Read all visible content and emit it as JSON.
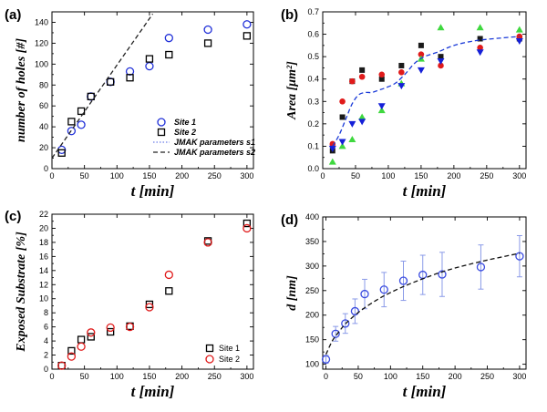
{
  "chart_data": [
    {
      "panel": "(a)",
      "type": "scatter",
      "xlabel": "t [min]",
      "ylabel": "number of holes [#]",
      "xlim": [
        0,
        310
      ],
      "ylim": [
        0,
        150
      ],
      "xticks": [
        0,
        50,
        100,
        150,
        200,
        250,
        300
      ],
      "yticks": [
        0,
        20,
        40,
        60,
        80,
        100,
        120,
        140
      ],
      "legend_position": "bottom-right",
      "series": [
        {
          "name": "Site 1",
          "marker": "circle-open",
          "color": "#1f2fd8",
          "x": [
            15,
            30,
            45,
            60,
            90,
            120,
            150,
            180,
            240,
            300
          ],
          "y": [
            18,
            36,
            42,
            69,
            83,
            93,
            98,
            125,
            133,
            138
          ]
        },
        {
          "name": "Site 2",
          "marker": "square-open",
          "color": "#000000",
          "x": [
            15,
            30,
            45,
            60,
            90,
            120,
            150,
            180,
            240,
            300
          ],
          "y": [
            15,
            45,
            55,
            69,
            83,
            87,
            105,
            109,
            120,
            127
          ]
        },
        {
          "name": "JMAK parameters s1",
          "line": "dotted",
          "color": "#6b7ee8",
          "x": [],
          "y": []
        },
        {
          "name": "JMAK parameters s2",
          "line": "dashed",
          "color": "#222222",
          "x": [
            0,
            155
          ],
          "y": [
            10,
            148
          ]
        }
      ]
    },
    {
      "panel": "(b)",
      "type": "scatter",
      "xlabel": "t [min]",
      "ylabel": "Area [μm²]",
      "xlim": [
        0,
        310
      ],
      "ylim": [
        0,
        0.7
      ],
      "xticks": [
        0,
        50,
        100,
        150,
        200,
        250,
        300
      ],
      "yticks": [
        0.0,
        0.1,
        0.2,
        0.3,
        0.4,
        0.5,
        0.6,
        0.7
      ],
      "series": [
        {
          "marker": "square",
          "color": "#1a1a1a",
          "x": [
            15,
            30,
            45,
            60,
            90,
            120,
            150,
            180,
            240,
            300
          ],
          "y": [
            0.08,
            0.23,
            0.39,
            0.44,
            0.4,
            0.46,
            0.55,
            0.5,
            0.58,
            0.58
          ]
        },
        {
          "marker": "circle",
          "color": "#e01b1b",
          "x": [
            15,
            30,
            45,
            60,
            90,
            120,
            150,
            180,
            240,
            300
          ],
          "y": [
            0.11,
            0.3,
            0.39,
            0.41,
            0.42,
            0.43,
            0.51,
            0.46,
            0.54,
            0.59
          ]
        },
        {
          "marker": "triangle-up",
          "color": "#3fd83f",
          "x": [
            15,
            30,
            45,
            60,
            90,
            120,
            150,
            180,
            240,
            300
          ],
          "y": [
            0.03,
            0.1,
            0.13,
            0.23,
            0.26,
            0.38,
            0.49,
            0.63,
            0.63,
            0.62
          ]
        },
        {
          "marker": "triangle-down",
          "color": "#1520d8",
          "x": [
            15,
            30,
            45,
            60,
            90,
            120,
            150,
            180,
            240,
            300
          ],
          "y": [
            0.09,
            0.12,
            0.2,
            0.21,
            0.28,
            0.37,
            0.44,
            0.48,
            0.52,
            0.57
          ]
        },
        {
          "line": "dashed-fit",
          "color": "#1a3ad8",
          "x": [
            15,
            25,
            35,
            45,
            55,
            65,
            75,
            85,
            95,
            110,
            125,
            140,
            155,
            175,
            200,
            230,
            260,
            300
          ],
          "y": [
            0.1,
            0.15,
            0.22,
            0.29,
            0.33,
            0.34,
            0.34,
            0.35,
            0.36,
            0.38,
            0.42,
            0.47,
            0.5,
            0.52,
            0.55,
            0.57,
            0.58,
            0.59
          ]
        }
      ]
    },
    {
      "panel": "(c)",
      "type": "scatter",
      "xlabel": "t [min]",
      "ylabel": "Exposed Substrate [%]",
      "xlim": [
        0,
        310
      ],
      "ylim": [
        0,
        22
      ],
      "xticks": [
        0,
        50,
        100,
        150,
        200,
        250,
        300
      ],
      "yticks": [
        0,
        2,
        4,
        6,
        8,
        10,
        12,
        14,
        16,
        18,
        20,
        22
      ],
      "legend_position": "bottom-right",
      "series": [
        {
          "name": "Site 1",
          "marker": "square-open",
          "color": "#000000",
          "x": [
            15,
            30,
            45,
            60,
            90,
            120,
            150,
            180,
            240,
            300
          ],
          "y": [
            0.5,
            2.6,
            4.2,
            4.6,
            5.3,
            6.1,
            9.2,
            11.1,
            18.2,
            20.7
          ]
        },
        {
          "name": "Site 2",
          "marker": "circle-open",
          "color": "#e01b1b",
          "x": [
            15,
            30,
            45,
            60,
            90,
            120,
            150,
            180,
            240,
            300
          ],
          "y": [
            0.5,
            1.8,
            3.2,
            5.2,
            5.9,
            6.0,
            8.8,
            13.4,
            18.0,
            20.0
          ]
        }
      ]
    },
    {
      "panel": "(d)",
      "type": "scatter",
      "xlabel": "t [min]",
      "ylabel": "d [nm]",
      "xlim": [
        -5,
        310
      ],
      "ylim": [
        90,
        400
      ],
      "xticks": [
        0,
        50,
        100,
        150,
        200,
        250,
        300
      ],
      "yticks": [
        100,
        150,
        200,
        250,
        300,
        350,
        400
      ],
      "series": [
        {
          "marker": "circle-open-errorbar",
          "color": "#3a4be0",
          "x": [
            0,
            15,
            30,
            45,
            60,
            90,
            120,
            150,
            180,
            240,
            300
          ],
          "y": [
            110,
            162,
            183,
            208,
            243,
            252,
            270,
            282,
            283,
            298,
            320
          ],
          "err": [
            8,
            15,
            20,
            25,
            30,
            35,
            40,
            40,
            45,
            45,
            42
          ]
        },
        {
          "line": "dashed-fit",
          "color": "#111111",
          "x": [
            0,
            10,
            20,
            30,
            45,
            60,
            80,
            100,
            125,
            150,
            175,
            200,
            230,
            260,
            300
          ],
          "y": [
            120,
            148,
            166,
            182,
            200,
            215,
            232,
            246,
            261,
            274,
            286,
            296,
            306,
            315,
            326
          ]
        }
      ]
    }
  ]
}
